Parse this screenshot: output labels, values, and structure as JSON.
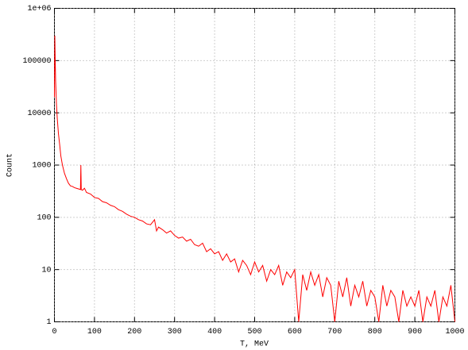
{
  "chart_data": {
    "type": "line",
    "xlabel": "T, MeV",
    "ylabel": "Count",
    "x": [
      0,
      1,
      2,
      3,
      5,
      7,
      10,
      13,
      16,
      20,
      25,
      30,
      35,
      40,
      45,
      50,
      55,
      60,
      65,
      66,
      67,
      70,
      75,
      80,
      90,
      100,
      110,
      120,
      130,
      140,
      150,
      160,
      170,
      180,
      190,
      200,
      210,
      220,
      230,
      240,
      250,
      255,
      260,
      270,
      280,
      290,
      300,
      310,
      320,
      330,
      340,
      350,
      360,
      370,
      380,
      390,
      400,
      410,
      420,
      430,
      440,
      450,
      460,
      470,
      480,
      490,
      500,
      510,
      520,
      530,
      540,
      550,
      560,
      570,
      580,
      590,
      600,
      610,
      620,
      630,
      640,
      650,
      660,
      670,
      680,
      690,
      700,
      710,
      720,
      730,
      740,
      750,
      760,
      770,
      780,
      790,
      800,
      810,
      820,
      830,
      840,
      850,
      860,
      870,
      880,
      890,
      900,
      910,
      920,
      930,
      940,
      950,
      960,
      970,
      980,
      990,
      1000
    ],
    "values": [
      20000,
      300000,
      100000,
      40000,
      15000,
      8000,
      4000,
      2500,
      1500,
      1000,
      700,
      550,
      450,
      400,
      390,
      370,
      360,
      350,
      340,
      1000,
      340,
      330,
      360,
      300,
      280,
      240,
      230,
      200,
      190,
      170,
      160,
      140,
      130,
      115,
      105,
      100,
      90,
      85,
      75,
      72,
      90,
      55,
      65,
      58,
      50,
      55,
      45,
      40,
      42,
      35,
      38,
      30,
      28,
      32,
      22,
      25,
      20,
      22,
      15,
      20,
      14,
      16,
      9,
      15,
      12,
      8,
      14,
      9,
      12,
      6,
      10,
      8,
      12,
      5,
      9,
      7,
      10,
      1,
      8,
      4,
      9,
      5,
      8,
      3,
      7,
      5,
      1,
      6,
      3,
      7,
      2,
      5,
      3,
      6,
      2,
      4,
      3,
      1,
      5,
      2,
      4,
      3,
      1,
      4,
      2,
      3,
      2,
      4,
      1,
      3,
      2,
      4,
      1,
      3,
      2,
      5,
      1
    ],
    "color": "#ff0000",
    "xlim": [
      0,
      1000
    ],
    "xticks": [
      0,
      100,
      200,
      300,
      400,
      500,
      600,
      700,
      800,
      900,
      1000
    ],
    "ylim": [
      1,
      1000000
    ],
    "ylog": true,
    "yticks": [
      1,
      10,
      100,
      1000,
      10000,
      100000,
      {
        "value": 1000000,
        "label": "1e+06"
      }
    ],
    "grid": true
  }
}
